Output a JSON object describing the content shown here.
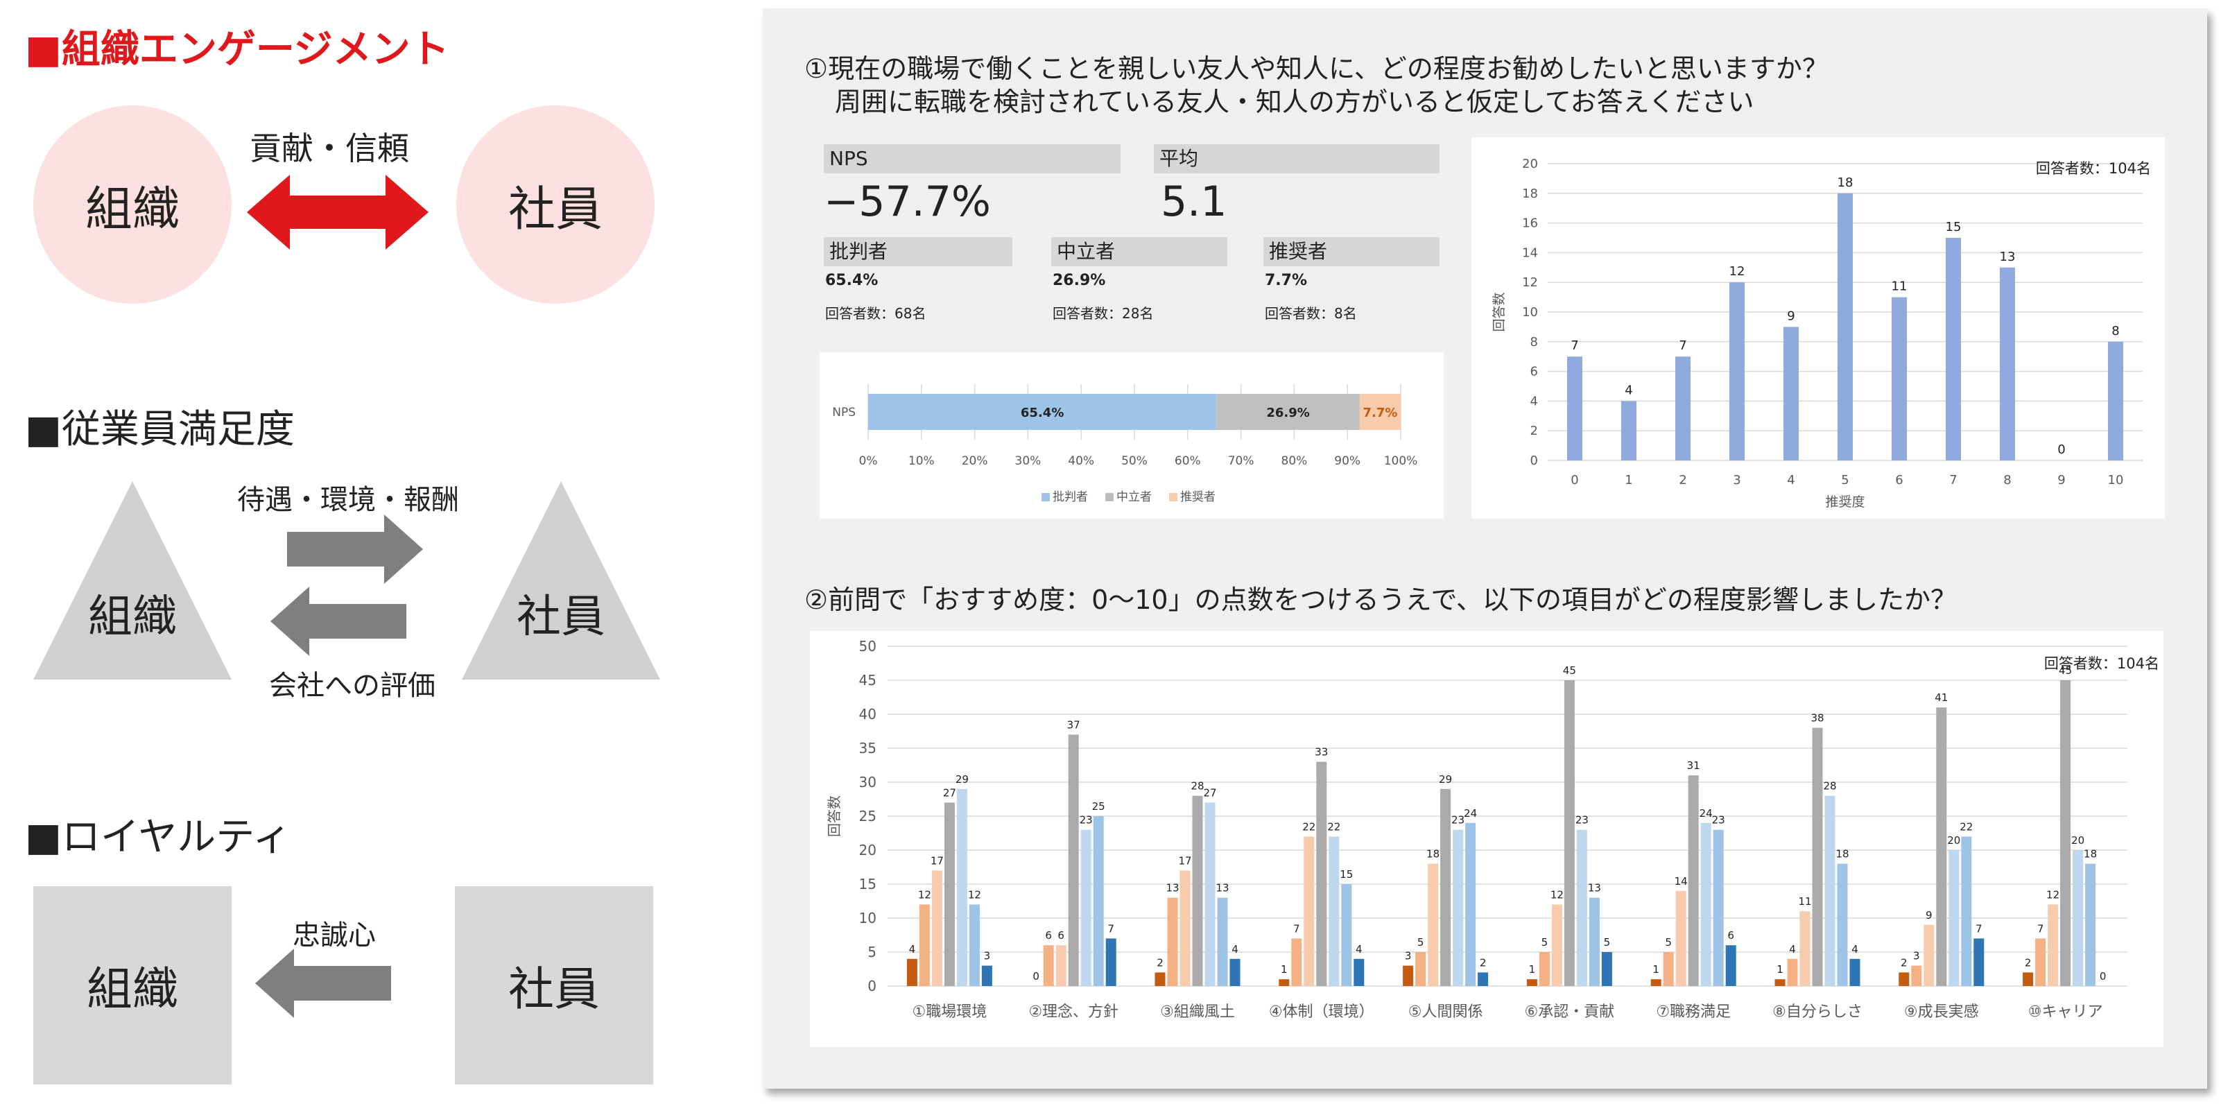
{
  "engagement": {
    "title": "■組織エンゲージメント",
    "left": "組織",
    "right": "社員",
    "arrow_label": "貢献・信頼"
  },
  "satisfaction": {
    "title": "■従業員満足度",
    "left": "組織",
    "right": "社員",
    "top_label": "待遇・環境・報酬",
    "bottom_label": "会社への評価"
  },
  "loyalty": {
    "title": "■ロイヤルティ",
    "left": "組織",
    "right": "社員",
    "arrow_label": "忠誠心"
  },
  "q1": {
    "line1": "①現在の職場で働くことを親しい友人や知人に、どの程度お勧めしたいと思いますか？",
    "line2": "周囲に転職を検討されている友人・知人の方がいると仮定してお答えください"
  },
  "kpi": {
    "nps_label": "NPS",
    "nps_value": "−57.7%",
    "avg_label": "平均",
    "avg_value": "5.1",
    "detractor_label": "批判者",
    "detractor_pct": "65.4%",
    "detractor_count": "回答者数：68名",
    "passive_label": "中立者",
    "passive_pct": "26.9%",
    "passive_count": "回答者数：28名",
    "promoter_label": "推奨者",
    "promoter_pct": "7.7%",
    "promoter_count": "回答者数：8名"
  },
  "q2": {
    "text": "②前問で「おすすめ度：0〜10」の点数をつけるうえで、以下の項目がどの程度影響しましたか？"
  },
  "colors": {
    "detractor": "#9dc3e6",
    "passive": "#bfbfbf",
    "promoter": "#f8cbad",
    "bar_blue": "#8faadc",
    "red": "#e0181c",
    "gray_arrow": "#7f7f7f",
    "s1": "#c55a11",
    "s2": "#f4b183",
    "s3": "#f8cbad",
    "s4": "#aaaaaa",
    "s5": "#bdd7ee",
    "s6": "#9dc3e6",
    "s7": "#2e75b6"
  },
  "chart_data": [
    {
      "type": "bar",
      "orientation": "horizontal-stacked",
      "categories": [
        "NPS"
      ],
      "series": [
        {
          "name": "批判者",
          "values": [
            65.4
          ]
        },
        {
          "name": "中立者",
          "values": [
            26.9
          ]
        },
        {
          "name": "推奨者",
          "values": [
            7.7
          ]
        }
      ],
      "data_labels": [
        "65.4%",
        "26.9%",
        "7.7%"
      ],
      "xticks": [
        "0%",
        "10%",
        "20%",
        "30%",
        "40%",
        "50%",
        "60%",
        "70%",
        "80%",
        "90%",
        "100%"
      ],
      "xlim": [
        0,
        100
      ],
      "legend": "bottom"
    },
    {
      "type": "bar",
      "categories": [
        "0",
        "1",
        "2",
        "3",
        "4",
        "5",
        "6",
        "7",
        "8",
        "9",
        "10"
      ],
      "values": [
        7,
        4,
        7,
        12,
        9,
        18,
        11,
        15,
        13,
        0,
        8
      ],
      "xlabel": "推奨度",
      "ylabel": "回答数",
      "ylim": [
        0,
        20
      ],
      "yticks": [
        "0",
        "2",
        "4",
        "6",
        "8",
        "10",
        "12",
        "14",
        "16",
        "18",
        "20"
      ],
      "annotation": "回答者数：104名"
    },
    {
      "type": "bar",
      "categories": [
        "①職場環境",
        "②理念、方針",
        "③組織風土",
        "④体制（環境）",
        "⑤人間関係",
        "⑥承認・貢献",
        "⑦職務満足",
        "⑧自分らしさ",
        "⑨成長実感",
        "⑩キャリア"
      ],
      "series": [
        {
          "values": [
            4,
            0,
            2,
            1,
            3,
            1,
            1,
            1,
            2,
            2
          ]
        },
        {
          "values": [
            12,
            6,
            13,
            7,
            5,
            5,
            5,
            4,
            3,
            7
          ]
        },
        {
          "values": [
            17,
            6,
            17,
            22,
            18,
            12,
            14,
            11,
            9,
            12
          ]
        },
        {
          "values": [
            27,
            37,
            28,
            33,
            29,
            45,
            31,
            38,
            41,
            45
          ]
        },
        {
          "values": [
            29,
            23,
            27,
            22,
            23,
            23,
            24,
            28,
            20,
            20
          ]
        },
        {
          "values": [
            12,
            25,
            13,
            15,
            24,
            13,
            23,
            18,
            22,
            18
          ]
        },
        {
          "values": [
            3,
            7,
            4,
            4,
            2,
            5,
            6,
            4,
            7,
            0
          ]
        }
      ],
      "ylabel": "回答数",
      "ylim": [
        0,
        50
      ],
      "yticks": [
        "0",
        "5",
        "10",
        "15",
        "20",
        "25",
        "30",
        "35",
        "40",
        "45",
        "50"
      ],
      "annotation": "回答者数：104名"
    }
  ]
}
